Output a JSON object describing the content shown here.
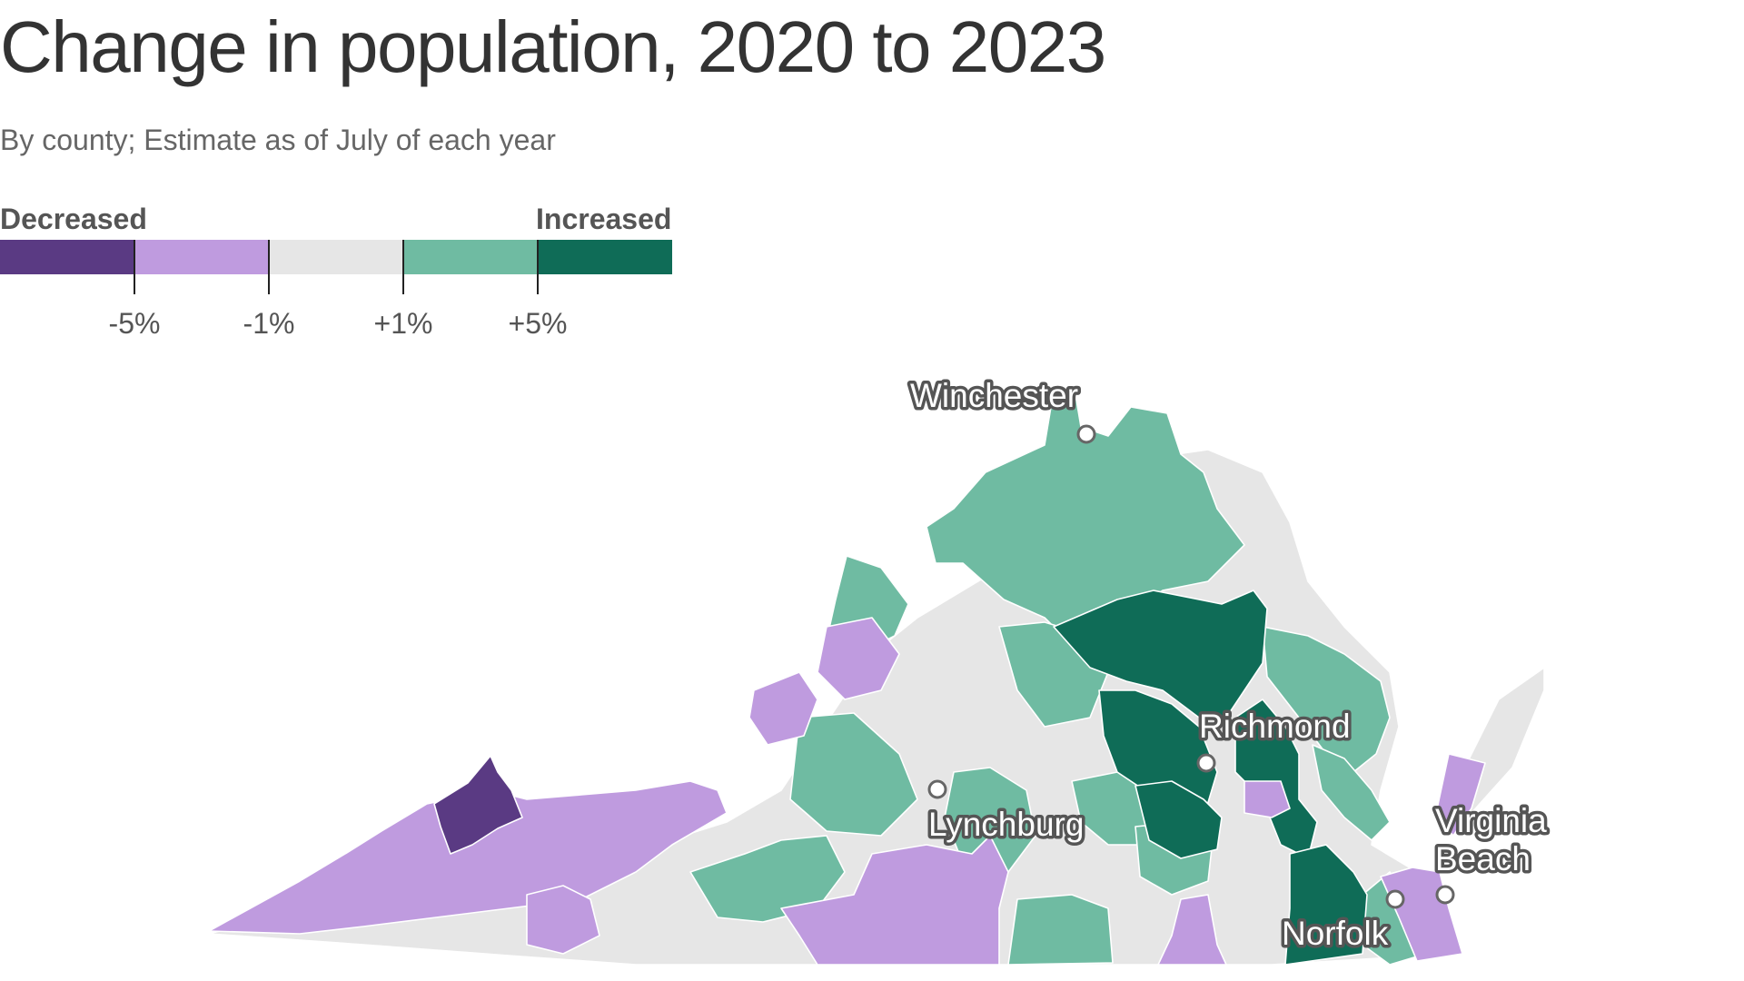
{
  "title": "Change in population, 2020 to 2023",
  "subtitle": "By county; Estimate as of July of each year",
  "legend": {
    "left_label": "Decreased",
    "right_label": "Increased",
    "bins": [
      {
        "color": "#5a3a83",
        "range": "below -5%"
      },
      {
        "color": "#bf9bdf",
        "range": "-5% to -1%"
      },
      {
        "color": "#e6e6e6",
        "range": "-1% to +1%"
      },
      {
        "color": "#6fbba2",
        "range": "+1% to +5%"
      },
      {
        "color": "#0f6c57",
        "range": "above +5%"
      }
    ],
    "ticks": [
      "-5%",
      "-1%",
      "+1%",
      "+5%"
    ]
  },
  "cities": [
    {
      "name": "Winchester"
    },
    {
      "name": "Richmond"
    },
    {
      "name": "Lynchburg"
    },
    {
      "name": "Virginia Beach"
    },
    {
      "name": "Norfolk"
    }
  ],
  "map": {
    "state": "Virginia",
    "unit": "county"
  }
}
